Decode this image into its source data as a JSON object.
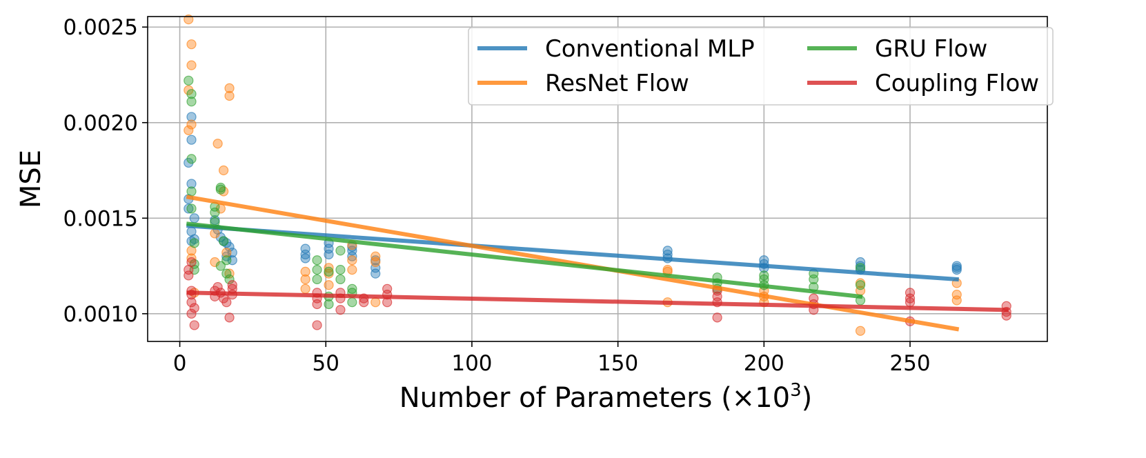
{
  "chart_data": {
    "type": "scatter",
    "title": "",
    "xlabel": "Number of Parameters (×10",
    "xlabel_sup": "3",
    "xlabel_close": ")",
    "ylabel": "MSE",
    "xlim": [
      -11,
      297
    ],
    "ylim": [
      0.000855,
      0.002555
    ],
    "xticks": [
      0,
      50,
      100,
      150,
      200,
      250
    ],
    "xtick_labels": [
      "0",
      "50",
      "100",
      "150",
      "200",
      "250"
    ],
    "yticks": [
      0.001,
      0.0015,
      0.002,
      0.0025
    ],
    "ytick_labels": [
      "0.0010",
      "0.0015",
      "0.0020",
      "0.0025"
    ],
    "grid": true,
    "legend_position": "top-right",
    "series": [
      {
        "name": "Conventional MLP",
        "color": "#1f77b4",
        "trend": [
          [
            3,
            0.00146
          ],
          [
            266,
            0.00118
          ]
        ],
        "points": [
          [
            3,
            0.00179
          ],
          [
            3,
            0.00155
          ],
          [
            3,
            0.0016
          ],
          [
            4,
            0.00168
          ],
          [
            4,
            0.00203
          ],
          [
            4,
            0.00191
          ],
          [
            4,
            0.00143
          ],
          [
            4,
            0.00138
          ],
          [
            5,
            0.0015
          ],
          [
            5,
            0.00139
          ],
          [
            12,
            0.00149
          ],
          [
            13,
            0.00144
          ],
          [
            14,
            0.0014
          ],
          [
            15,
            0.00138
          ],
          [
            16,
            0.00137
          ],
          [
            17,
            0.00135
          ],
          [
            18,
            0.00132
          ],
          [
            18,
            0.00128
          ],
          [
            16,
            0.0013
          ],
          [
            43,
            0.00134
          ],
          [
            43,
            0.00131
          ],
          [
            43,
            0.00129
          ],
          [
            51,
            0.00137
          ],
          [
            51,
            0.00134
          ],
          [
            51,
            0.00131
          ],
          [
            59,
            0.00135
          ],
          [
            59,
            0.00133
          ],
          [
            59,
            0.0013
          ],
          [
            67,
            0.00128
          ],
          [
            67,
            0.00124
          ],
          [
            67,
            0.00121
          ],
          [
            167,
            0.00133
          ],
          [
            167,
            0.00131
          ],
          [
            167,
            0.00129
          ],
          [
            200,
            0.00128
          ],
          [
            200,
            0.00126
          ],
          [
            200,
            0.00124
          ],
          [
            233,
            0.00127
          ],
          [
            233,
            0.00125
          ],
          [
            233,
            0.00123
          ],
          [
            266,
            0.00125
          ],
          [
            266,
            0.00124
          ],
          [
            266,
            0.00123
          ]
        ]
      },
      {
        "name": "ResNet Flow",
        "color": "#ff7f0e",
        "trend": [
          [
            3,
            0.00161
          ],
          [
            266,
            0.00092
          ]
        ],
        "points": [
          [
            3,
            0.00254
          ],
          [
            3,
            0.00217
          ],
          [
            3,
            0.00196
          ],
          [
            4,
            0.00241
          ],
          [
            4,
            0.0023
          ],
          [
            4,
            0.00199
          ],
          [
            4,
            0.00133
          ],
          [
            4,
            0.00129
          ],
          [
            5,
            0.00111
          ],
          [
            12,
            0.00142
          ],
          [
            12,
            0.00127
          ],
          [
            13,
            0.00189
          ],
          [
            14,
            0.00155
          ],
          [
            15,
            0.00175
          ],
          [
            15,
            0.00164
          ],
          [
            16,
            0.00132
          ],
          [
            17,
            0.00218
          ],
          [
            17,
            0.00214
          ],
          [
            17,
            0.00121
          ],
          [
            43,
            0.00122
          ],
          [
            43,
            0.00118
          ],
          [
            43,
            0.00113
          ],
          [
            51,
            0.00124
          ],
          [
            51,
            0.00121
          ],
          [
            51,
            0.00115
          ],
          [
            59,
            0.00136
          ],
          [
            59,
            0.00128
          ],
          [
            59,
            0.00123
          ],
          [
            67,
            0.0013
          ],
          [
            67,
            0.00127
          ],
          [
            67,
            0.00106
          ],
          [
            167,
            0.00123
          ],
          [
            167,
            0.00122
          ],
          [
            167,
            0.00106
          ],
          [
            200,
            0.00112
          ],
          [
            200,
            0.00109
          ],
          [
            200,
            0.00106
          ],
          [
            233,
            0.00116
          ],
          [
            233,
            0.00112
          ],
          [
            233,
            0.00091
          ],
          [
            266,
            0.00116
          ],
          [
            266,
            0.0011
          ],
          [
            266,
            0.00107
          ]
        ]
      },
      {
        "name": "GRU Flow",
        "color": "#2ca02c",
        "trend": [
          [
            3,
            0.00147
          ],
          [
            233,
            0.00109
          ]
        ],
        "points": [
          [
            3,
            0.00222
          ],
          [
            4,
            0.00215
          ],
          [
            4,
            0.00211
          ],
          [
            4,
            0.00181
          ],
          [
            4,
            0.00164
          ],
          [
            4,
            0.00155
          ],
          [
            5,
            0.00137
          ],
          [
            5,
            0.00126
          ],
          [
            5,
            0.00123
          ],
          [
            12,
            0.00156
          ],
          [
            12,
            0.00153
          ],
          [
            12,
            0.00148
          ],
          [
            14,
            0.00166
          ],
          [
            14,
            0.00165
          ],
          [
            15,
            0.00138
          ],
          [
            16,
            0.00128
          ],
          [
            16,
            0.00121
          ],
          [
            14,
            0.00125
          ],
          [
            17,
            0.00118
          ],
          [
            47,
            0.00128
          ],
          [
            47,
            0.00123
          ],
          [
            47,
            0.00118
          ],
          [
            51,
            0.00122
          ],
          [
            51,
            0.00109
          ],
          [
            51,
            0.00105
          ],
          [
            55,
            0.00133
          ],
          [
            55,
            0.00123
          ],
          [
            55,
            0.00118
          ],
          [
            59,
            0.00113
          ],
          [
            59,
            0.00111
          ],
          [
            59,
            0.00106
          ],
          [
            184,
            0.00119
          ],
          [
            184,
            0.00116
          ],
          [
            184,
            0.00113
          ],
          [
            200,
            0.0012
          ],
          [
            200,
            0.00118
          ],
          [
            200,
            0.00115
          ],
          [
            217,
            0.00121
          ],
          [
            217,
            0.00118
          ],
          [
            217,
            0.00114
          ],
          [
            233,
            0.00124
          ],
          [
            233,
            0.00115
          ],
          [
            233,
            0.00107
          ]
        ]
      },
      {
        "name": "Coupling Flow",
        "color": "#d62728",
        "trend": [
          [
            3,
            0.00111
          ],
          [
            283,
            0.00102
          ]
        ],
        "points": [
          [
            3,
            0.00123
          ],
          [
            3,
            0.0012
          ],
          [
            4,
            0.00127
          ],
          [
            4,
            0.00112
          ],
          [
            4,
            0.0011
          ],
          [
            4,
            0.00106
          ],
          [
            5,
            0.00103
          ],
          [
            5,
            0.00094
          ],
          [
            4,
            0.001
          ],
          [
            12,
            0.00112
          ],
          [
            12,
            0.00109
          ],
          [
            13,
            0.00114
          ],
          [
            14,
            0.00111
          ],
          [
            15,
            0.00108
          ],
          [
            16,
            0.00106
          ],
          [
            17,
            0.00098
          ],
          [
            18,
            0.00115
          ],
          [
            18,
            0.00113
          ],
          [
            18,
            0.0011
          ],
          [
            47,
            0.00111
          ],
          [
            47,
            0.00108
          ],
          [
            47,
            0.00105
          ],
          [
            47,
            0.00094
          ],
          [
            55,
            0.00111
          ],
          [
            55,
            0.00108
          ],
          [
            55,
            0.00102
          ],
          [
            63,
            0.00108
          ],
          [
            63,
            0.00106
          ],
          [
            71,
            0.00113
          ],
          [
            71,
            0.0011
          ],
          [
            71,
            0.00106
          ],
          [
            184,
            0.00112
          ],
          [
            184,
            0.00109
          ],
          [
            184,
            0.00106
          ],
          [
            184,
            0.00098
          ],
          [
            217,
            0.00108
          ],
          [
            217,
            0.00105
          ],
          [
            217,
            0.00102
          ],
          [
            250,
            0.00111
          ],
          [
            250,
            0.00108
          ],
          [
            250,
            0.00106
          ],
          [
            250,
            0.00096
          ],
          [
            283,
            0.00104
          ],
          [
            283,
            0.00101
          ],
          [
            283,
            0.00099
          ]
        ]
      }
    ]
  }
}
